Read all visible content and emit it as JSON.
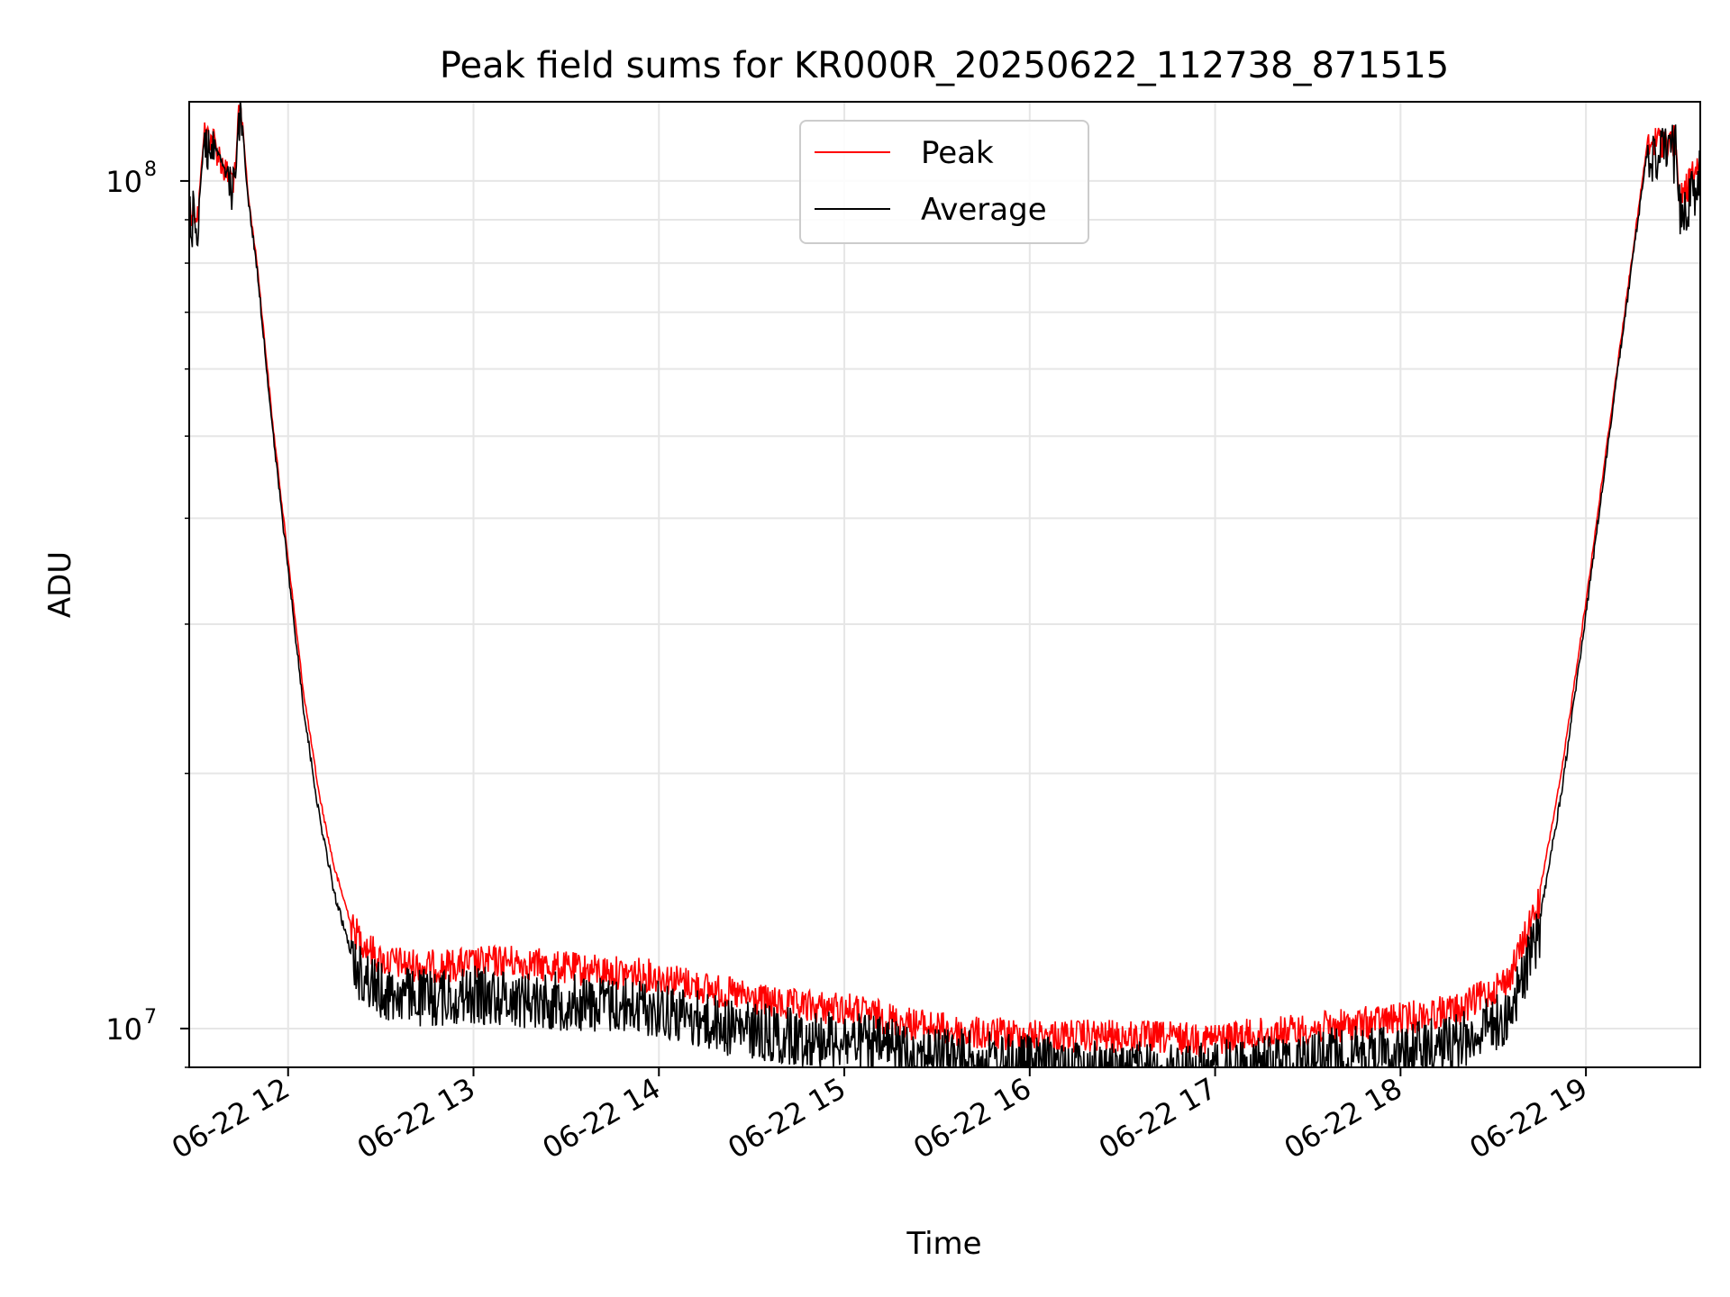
{
  "chart_data": {
    "type": "line",
    "title": "Peak field sums for KR000R_20250622_112738_871515",
    "xlabel": "Time",
    "ylabel": "ADU",
    "yscale": "log",
    "ylim": [
      9000000,
      124000000
    ],
    "xlim": [
      "06-22 11:28",
      "06-22 19:37"
    ],
    "grid": true,
    "legend_position": "upper-center",
    "x_ticks": [
      {
        "t": "06-22 12:00",
        "label": "06-22 12"
      },
      {
        "t": "06-22 13:00",
        "label": "06-22 13"
      },
      {
        "t": "06-22 14:00",
        "label": "06-22 14"
      },
      {
        "t": "06-22 15:00",
        "label": "06-22 15"
      },
      {
        "t": "06-22 16:00",
        "label": "06-22 16"
      },
      {
        "t": "06-22 17:00",
        "label": "06-22 17"
      },
      {
        "t": "06-22 18:00",
        "label": "06-22 18"
      },
      {
        "t": "06-22 19:00",
        "label": "06-22 19"
      }
    ],
    "y_ticks": [
      {
        "value": 10000000,
        "base": "10",
        "exp": "7"
      },
      {
        "value": 100000000,
        "base": "10",
        "exp": "8"
      }
    ],
    "series": [
      {
        "name": "Peak",
        "color": "#ff0000",
        "noise": 0.04,
        "points": [
          [
            "06-22 11:28",
            95000000
          ],
          [
            "06-22 11:31",
            94000000
          ],
          [
            "06-22 11:33",
            117000000
          ],
          [
            "06-22 11:36",
            114000000
          ],
          [
            "06-22 11:40",
            104000000
          ],
          [
            "06-22 11:43",
            103000000
          ],
          [
            "06-22 11:44",
            123000000
          ],
          [
            "06-22 11:45",
            121000000
          ],
          [
            "06-22 11:47",
            97000000
          ],
          [
            "06-22 11:50",
            80000000
          ],
          [
            "06-22 11:55",
            52000000
          ],
          [
            "06-22 12:00",
            36000000
          ],
          [
            "06-22 12:05",
            25000000
          ],
          [
            "06-22 12:10",
            19000000
          ],
          [
            "06-22 12:15",
            15500000
          ],
          [
            "06-22 12:20",
            13500000
          ],
          [
            "06-22 12:30",
            12300000
          ],
          [
            "06-22 12:45",
            12100000
          ],
          [
            "06-22 13:00",
            12200000
          ],
          [
            "06-22 13:10",
            12300000
          ],
          [
            "06-22 13:30",
            12050000
          ],
          [
            "06-22 14:00",
            11800000
          ],
          [
            "06-22 14:20",
            11300000
          ],
          [
            "06-22 14:40",
            10900000
          ],
          [
            "06-22 15:00",
            10800000
          ],
          [
            "06-22 15:20",
            10400000
          ],
          [
            "06-22 15:40",
            10100000
          ],
          [
            "06-22 16:00",
            10050000
          ],
          [
            "06-22 16:30",
            10000000
          ],
          [
            "06-22 17:00",
            9950000
          ],
          [
            "06-22 17:30",
            10200000
          ],
          [
            "06-22 18:00",
            10500000
          ],
          [
            "06-22 18:20",
            10800000
          ],
          [
            "06-22 18:35",
            11700000
          ],
          [
            "06-22 18:45",
            14500000
          ],
          [
            "06-22 18:52",
            20000000
          ],
          [
            "06-22 19:00",
            32000000
          ],
          [
            "06-22 19:10",
            60000000
          ],
          [
            "06-22 19:20",
            112000000
          ],
          [
            "06-22 19:23",
            114000000
          ],
          [
            "06-22 19:29",
            114000000
          ],
          [
            "06-22 19:30",
            97000000
          ],
          [
            "06-22 19:37",
            107000000
          ]
        ]
      },
      {
        "name": "Average",
        "color": "#000000",
        "noise": 0.07,
        "points": [
          [
            "06-22 11:28",
            94000000
          ],
          [
            "06-22 11:31",
            93000000
          ],
          [
            "06-22 11:33",
            115000000
          ],
          [
            "06-22 11:36",
            112000000
          ],
          [
            "06-22 11:40",
            102000000
          ],
          [
            "06-22 11:43",
            101000000
          ],
          [
            "06-22 11:44",
            121000000
          ],
          [
            "06-22 11:45",
            120000000
          ],
          [
            "06-22 11:47",
            96000000
          ],
          [
            "06-22 11:50",
            79000000
          ],
          [
            "06-22 11:55",
            51000000
          ],
          [
            "06-22 12:00",
            35000000
          ],
          [
            "06-22 12:05",
            24000000
          ],
          [
            "06-22 12:10",
            18000000
          ],
          [
            "06-22 12:15",
            14500000
          ],
          [
            "06-22 12:20",
            12500000
          ],
          [
            "06-22 12:30",
            11500000
          ],
          [
            "06-22 12:45",
            11300000
          ],
          [
            "06-22 13:00",
            11400000
          ],
          [
            "06-22 13:30",
            11200000
          ],
          [
            "06-22 14:00",
            11000000
          ],
          [
            "06-22 14:20",
            10500000
          ],
          [
            "06-22 14:40",
            10200000
          ],
          [
            "06-22 15:00",
            10100000
          ],
          [
            "06-22 15:20",
            9800000
          ],
          [
            "06-22 15:40",
            9600000
          ],
          [
            "06-22 16:00",
            9450000
          ],
          [
            "06-22 16:30",
            9300000
          ],
          [
            "06-22 16:45",
            9250000
          ],
          [
            "06-22 17:00",
            9300000
          ],
          [
            "06-22 17:30",
            9600000
          ],
          [
            "06-22 18:00",
            9750000
          ],
          [
            "06-22 18:20",
            10100000
          ],
          [
            "06-22 18:35",
            10800000
          ],
          [
            "06-22 18:45",
            13500000
          ],
          [
            "06-22 18:52",
            19000000
          ],
          [
            "06-22 19:00",
            31000000
          ],
          [
            "06-22 19:10",
            59000000
          ],
          [
            "06-22 19:20",
            110000000
          ],
          [
            "06-22 19:23",
            112000000
          ],
          [
            "06-22 19:29",
            112000000
          ],
          [
            "06-22 19:30",
            95000000
          ],
          [
            "06-22 19:37",
            105000000
          ]
        ]
      }
    ]
  }
}
